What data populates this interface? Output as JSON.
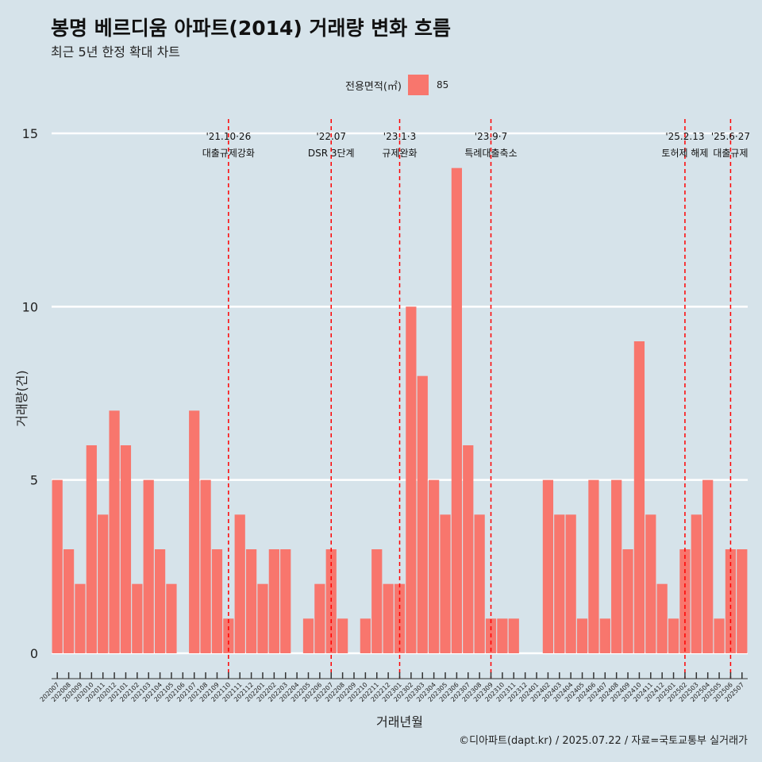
{
  "title": "봉명 베르디움 아파트(2014) 거래량 변화 흐름",
  "subtitle": "최근 5년 한정 확대 차트",
  "legend": {
    "title": "전용면적(㎡)",
    "items": [
      "85"
    ],
    "position": "top"
  },
  "caption": "©디아파트(dapt.kr) / 2025.07.22 / 자료=국토교통부 실거래가",
  "colors": {
    "bar": "#f8766d",
    "background": "#d6e3ea",
    "grid": "#ffffff",
    "event_line": "#ff0000"
  },
  "chart_data": {
    "type": "bar",
    "xlabel": "거래년월",
    "ylabel": "거래량(건)",
    "ylim": [
      0,
      15
    ],
    "yticks": [
      0,
      5,
      10,
      15
    ],
    "grid": true,
    "series": [
      {
        "name": "85"
      }
    ],
    "categories": [
      "202007",
      "202008",
      "202009",
      "202010",
      "202011",
      "202012",
      "202101",
      "202102",
      "202103",
      "202104",
      "202105",
      "202106",
      "202107",
      "202108",
      "202109",
      "202110",
      "202111",
      "202112",
      "202201",
      "202202",
      "202203",
      "202204",
      "202205",
      "202206",
      "202207",
      "202208",
      "202209",
      "202210",
      "202211",
      "202212",
      "202301",
      "202302",
      "202303",
      "202304",
      "202305",
      "202306",
      "202307",
      "202308",
      "202309",
      "202310",
      "202311",
      "202312",
      "202401",
      "202402",
      "202403",
      "202404",
      "202405",
      "202406",
      "202407",
      "202408",
      "202409",
      "202410",
      "202411",
      "202412",
      "202501",
      "202502",
      "202503",
      "202504",
      "202505",
      "202506",
      "202507"
    ],
    "values": [
      5,
      3,
      2,
      6,
      4,
      7,
      6,
      2,
      5,
      3,
      2,
      0,
      7,
      5,
      3,
      1,
      4,
      3,
      2,
      3,
      3,
      0,
      1,
      2,
      3,
      1,
      0,
      1,
      3,
      2,
      2,
      10,
      8,
      5,
      4,
      14,
      6,
      4,
      1,
      1,
      1,
      0,
      0,
      5,
      4,
      4,
      1,
      5,
      1,
      5,
      3,
      9,
      4,
      2,
      1,
      3,
      4,
      5,
      1,
      3,
      3
    ],
    "tick_labels": [
      "202007",
      "202008",
      "202009",
      "202010",
      "202011",
      "202012",
      "202101",
      "202102",
      "202103",
      "202104",
      "202105",
      "202106",
      "202107",
      "202108",
      "202109",
      "202110",
      "202111",
      "202112",
      "202201",
      "202202",
      "202203",
      "202204",
      "202205",
      "202206",
      "202207",
      "202208",
      "202209",
      "202210",
      "202211",
      "202212",
      "202301",
      "202302",
      "202303",
      "202304",
      "202305",
      "202306",
      "202307",
      "202308",
      "202309",
      "202310",
      "202311",
      "202312",
      "202401",
      "202402",
      "202403",
      "202404",
      "202405",
      "202406",
      "202407",
      "202408",
      "202409",
      "202410",
      "202411",
      "202412",
      "202501",
      "202502",
      "202503",
      "202504",
      "202505",
      "202506",
      "202507"
    ],
    "events": [
      {
        "at": "202110",
        "date": "'21.10·26",
        "label": "대출규제강화"
      },
      {
        "at": "202207",
        "date": "'22.07",
        "label": "DSR 3단계"
      },
      {
        "at": "202301",
        "date": "'23.1·3",
        "label": "규제완화"
      },
      {
        "at": "202309",
        "date": "'23.9·7",
        "label": "특례대출축소"
      },
      {
        "at": "202502",
        "date": "'25.2.13",
        "label": "토허제 해제"
      },
      {
        "at": "202506",
        "date": "'25.6·27",
        "label": "대출규제"
      }
    ]
  }
}
